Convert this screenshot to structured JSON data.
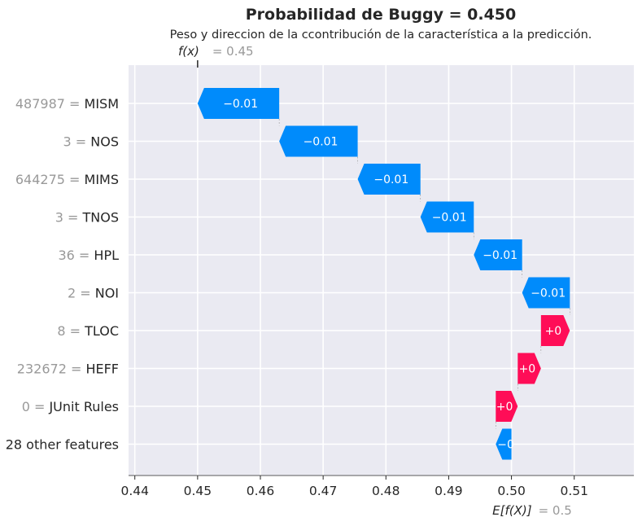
{
  "chart_data": {
    "type": "waterfall",
    "title": "Probabilidad de Buggy = 0.450",
    "subtitle": "Peso y direccion de la ccontribución de la característica a la predicción.",
    "fx": {
      "symbol": "f(x)",
      "value_text": "= 0.45",
      "value": 0.45
    },
    "base": {
      "symbol": "E[f(X)]",
      "value_text": "= 0.5",
      "value": 0.5
    },
    "xlim": [
      0.439,
      0.5195
    ],
    "xticks": [
      0.44,
      0.45,
      0.46,
      0.47,
      0.48,
      0.49,
      0.5,
      0.51
    ],
    "xtick_labels": [
      "0.44",
      "0.45",
      "0.46",
      "0.47",
      "0.48",
      "0.49",
      "0.50",
      "0.51"
    ],
    "grid": true,
    "colors": {
      "positive": "#ff0d57",
      "negative": "#008bfb",
      "background": "#eaeaf2"
    },
    "features": [
      {
        "value_label": "487987 =",
        "name": "MISM",
        "start": 0.463,
        "end": 0.45,
        "label": "−0.01"
      },
      {
        "value_label": "3 =",
        "name": "NOS",
        "start": 0.4755,
        "end": 0.463,
        "label": "−0.01"
      },
      {
        "value_label": "644275 =",
        "name": "MIMS",
        "start": 0.4855,
        "end": 0.4755,
        "label": "−0.01"
      },
      {
        "value_label": "3 =",
        "name": "TNOS",
        "start": 0.494,
        "end": 0.4855,
        "label": "−0.01"
      },
      {
        "value_label": "36 =",
        "name": "HPL",
        "start": 0.5017,
        "end": 0.494,
        "label": "−0.01"
      },
      {
        "value_label": "2 =",
        "name": "NOI",
        "start": 0.5093,
        "end": 0.5017,
        "label": "−0.01"
      },
      {
        "value_label": "8 =",
        "name": "TLOC",
        "start": 0.5047,
        "end": 0.5093,
        "label": "+0"
      },
      {
        "value_label": "232672 =",
        "name": "HEFF",
        "start": 0.501,
        "end": 0.5047,
        "label": "+0"
      },
      {
        "value_label": "0 =",
        "name": "JUnit Rules",
        "start": 0.4975,
        "end": 0.501,
        "label": "+0"
      },
      {
        "value_label": "",
        "name": "28 other features",
        "start": 0.5,
        "end": 0.4975,
        "label": "−0"
      }
    ]
  }
}
